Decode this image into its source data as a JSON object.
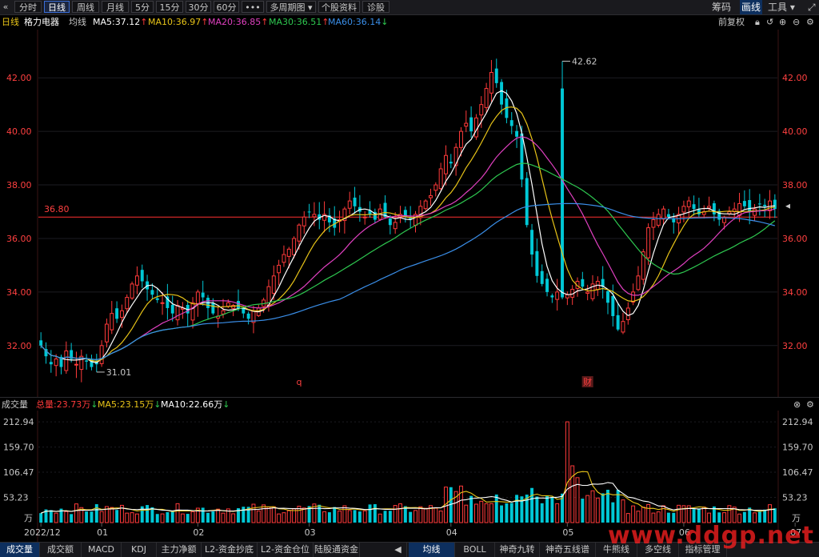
{
  "toolbar": {
    "back_icon": "double-chevron-left-icon",
    "tabs": [
      "分时",
      "日线",
      "周线",
      "月线",
      "5分",
      "15分",
      "30分",
      "60分",
      "•••",
      "多周期图 ▾",
      "个股资料",
      "诊股"
    ],
    "active_tab": "日线",
    "right_items": [
      "筹码",
      "画线",
      "工具 ▾"
    ],
    "active_right": "画线"
  },
  "price_legend": {
    "period": "日线",
    "stock_name": "格力电器",
    "ma_label": "均线",
    "ma5": "MA5:37.12",
    "ma10": "MA10:36.97",
    "ma20": "MA20:36.85",
    "ma30": "MA30:36.51",
    "ma60": "MA60:36.14",
    "fq": "前复权"
  },
  "volume_legend": {
    "title": "成交量",
    "total": "总量:23.73万",
    "ma5": "MA5:23.15万",
    "ma10": "MA10:22.66万"
  },
  "colors": {
    "up": "#ff3a3a",
    "down": "#00c8d6",
    "ma5": "#ffffff",
    "ma10": "#e8c418",
    "ma20": "#e040c0",
    "ma30": "#2ec850",
    "ma60": "#3a8ee8",
    "axis_text": "#ff4040",
    "ref_line": "#ff3030"
  },
  "bottom_tabs_left": [
    "成交量",
    "成交额",
    "MACD",
    "KDJ",
    "主力净额",
    "L2-资金抄底",
    "L2-资金仓位",
    "陆股通资金"
  ],
  "bottom_tabs_right": [
    "均线",
    "BOLL",
    "神奇九转",
    "神奇五线谱",
    "牛熊线",
    "多空线",
    "指标管理"
  ],
  "watermark": "www.ddgp.net",
  "chart_data": {
    "type": "candlestick",
    "title": "格力电器 日线",
    "price_ylim": [
      30.5,
      43.5
    ],
    "price_ticks": [
      "32.00",
      "34.00",
      "36.00",
      "38.00",
      "40.00",
      "42.00"
    ],
    "reference_line": {
      "value": 36.8,
      "label": "36.80"
    },
    "annotations": [
      {
        "label": "42.62",
        "kind": "high",
        "bar_index": 103
      },
      {
        "label": "31.01",
        "kind": "low",
        "bar_index": 11
      }
    ],
    "event_markers": [
      {
        "label": "q",
        "bar_index": 51
      },
      {
        "label": "财",
        "bar_index": 108
      }
    ],
    "x_labels": [
      {
        "label": "2022/12",
        "bar_index": 0
      },
      {
        "label": "01",
        "bar_index": 12
      },
      {
        "label": "02",
        "bar_index": 31
      },
      {
        "label": "03",
        "bar_index": 53
      },
      {
        "label": "04",
        "bar_index": 81
      },
      {
        "label": "05",
        "bar_index": 104
      },
      {
        "label": "06",
        "bar_index": 127
      },
      {
        "label": "07",
        "bar_index": 149
      }
    ],
    "ohlc_anchor_close": [
      32.0,
      31.6,
      31.3,
      31.5,
      31.2,
      31.8,
      31.5,
      31.3,
      31.6,
      31.4,
      31.2,
      31.3,
      32.0,
      32.8,
      33.2,
      33.0,
      33.3,
      33.8,
      34.3,
      34.6,
      34.4,
      34.1,
      33.9,
      33.7,
      33.6,
      33.4,
      33.2,
      33.5,
      33.4,
      33.2,
      33.6,
      34.0,
      33.8,
      33.4,
      33.2,
      33.1,
      33.3,
      33.6,
      33.5,
      33.4,
      33.2,
      33.0,
      33.3,
      33.4,
      33.7,
      34.2,
      34.6,
      35.0,
      35.4,
      35.6,
      36.0,
      36.5,
      36.8,
      37.0,
      36.9,
      36.7,
      36.9,
      36.6,
      36.4,
      36.7,
      37.1,
      37.4,
      37.2,
      37.0,
      36.8,
      36.9,
      36.7,
      37.1,
      36.8,
      36.5,
      36.6,
      36.9,
      36.8,
      36.7,
      36.9,
      37.2,
      37.4,
      37.6,
      38.0,
      38.6,
      39.1,
      38.8,
      39.4,
      40.0,
      40.3,
      40.0,
      40.5,
      41.0,
      41.6,
      42.2,
      41.8,
      41.0,
      40.5,
      40.2,
      39.8,
      38.2,
      36.5,
      35.4,
      34.6,
      34.3,
      34.0,
      33.8,
      34.0,
      33.8,
      33.9,
      34.1,
      34.4,
      34.2,
      34.0,
      34.3,
      34.4,
      34.2,
      33.6,
      33.1,
      32.6,
      32.9,
      33.4,
      34.0,
      34.6,
      35.5,
      36.4,
      36.7,
      36.9,
      37.1,
      36.8,
      36.6,
      36.9,
      37.2,
      37.4,
      37.1,
      36.9,
      37.0,
      37.2,
      36.9,
      36.7,
      36.8,
      37.0,
      37.1,
      37.3,
      37.2,
      37.0,
      37.1,
      37.3,
      37.2,
      37.4,
      37.1
    ],
    "volume_ylim": [
      0,
      230
    ],
    "volume_ticks": [
      "53.23",
      "106.47",
      "159.70",
      "212.94"
    ],
    "volume_unit": "万",
    "volume_peak": {
      "value": 212.94,
      "bar_index": 104
    }
  }
}
